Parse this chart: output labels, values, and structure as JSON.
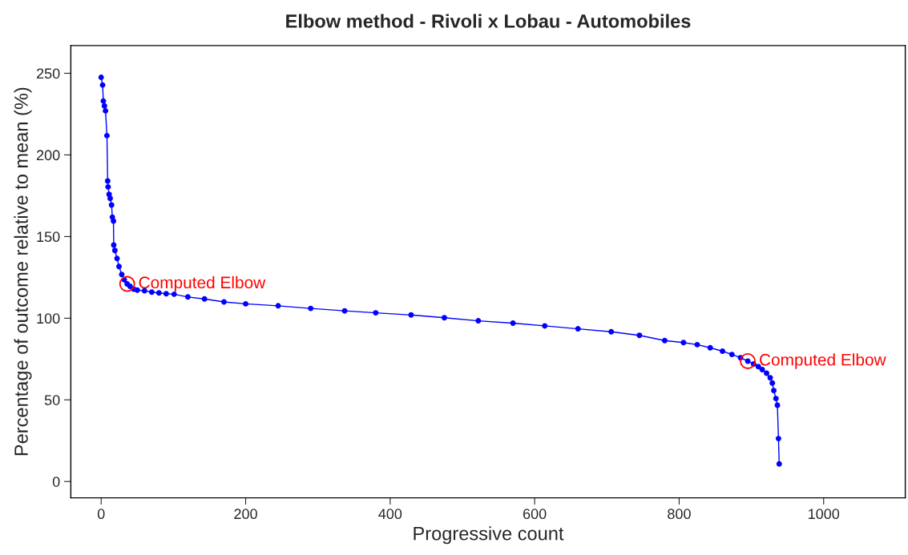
{
  "chart_data": {
    "type": "line",
    "title": "Elbow method - Rivoli x Lobau - Automobiles",
    "xlabel": "Progressive count",
    "ylabel": "Percentage of outcome relative to mean (%)",
    "xlim": [
      -42,
      1113
    ],
    "ylim": [
      -10,
      267
    ],
    "xticks": [
      0,
      200,
      400,
      600,
      800,
      1000
    ],
    "yticks": [
      0,
      50,
      100,
      150,
      200,
      250
    ],
    "grid": false,
    "legend": false,
    "marker": "circle",
    "line_style": "solid",
    "series": [
      {
        "color": "#0000ff",
        "x": [
          0,
          2,
          3,
          4.5,
          6,
          8,
          9,
          9.6,
          11,
          12.5,
          14.4,
          15.5,
          17,
          17.4,
          19,
          22,
          24.7,
          28.5,
          32,
          36,
          40,
          45,
          50,
          60,
          70,
          80,
          90,
          101,
          120,
          143,
          170,
          200,
          245,
          290,
          337,
          380,
          429,
          475,
          522,
          570,
          614,
          660,
          706,
          745,
          780,
          806,
          825,
          843,
          860,
          873,
          885,
          895,
          903,
          909.6,
          915,
          921,
          926,
          929,
          931,
          934,
          936,
          937.5,
          938.5
        ],
        "values": [
          247.5,
          242.8,
          233,
          230,
          227,
          211.8,
          184,
          180.4,
          175.8,
          173.4,
          169.3,
          161.9,
          159.5,
          144.8,
          141.5,
          136.6,
          131.7,
          126.8,
          123.5,
          121,
          119.5,
          117.8,
          117.2,
          116.8,
          116,
          115.5,
          115,
          114.7,
          113,
          111.8,
          110,
          108.8,
          107.6,
          106,
          104.5,
          103.3,
          102,
          100.3,
          98.4,
          97,
          95.3,
          93.5,
          91.7,
          89.5,
          86.3,
          85.1,
          83.8,
          81.9,
          79.8,
          77.8,
          75.8,
          73.7,
          72,
          70.4,
          68.5,
          66.3,
          63.5,
          60.3,
          55.7,
          50.8,
          46.7,
          26.3,
          10.8
        ]
      }
    ],
    "annotations": [
      {
        "text": "Computed Elbow",
        "x": 36,
        "y": 121
      },
      {
        "text": "Computed Elbow",
        "x": 895,
        "y": 73.7
      }
    ]
  }
}
